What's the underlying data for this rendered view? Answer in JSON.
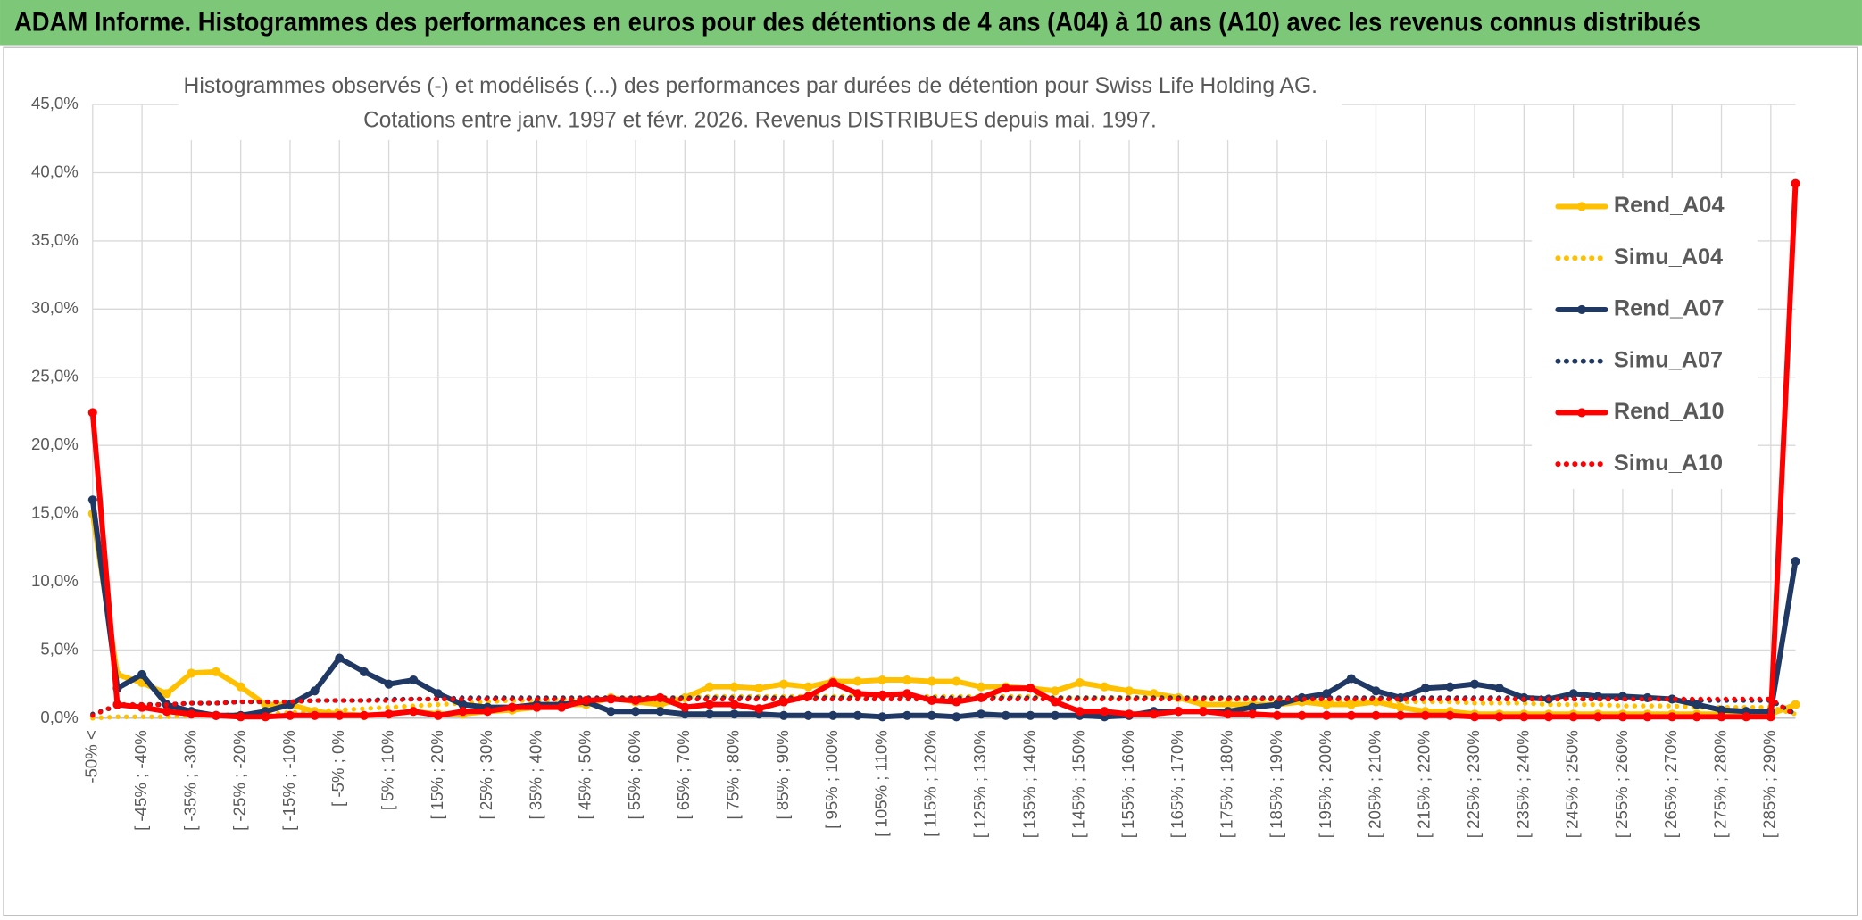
{
  "header": {
    "title": "ADAM Informe. Histogrammes des performances en euros pour des détentions de 4 ans (A04) à 10 ans (A10) avec les revenus connus distribués"
  },
  "chart_data": {
    "type": "line",
    "title": "Histogrammes observés (-) et modélisés (...) des performances par durées de détention pour Swiss Life Holding AG.",
    "subtitle": "Cotations entre janv. 1997 et févr. 2026. Revenus DISTRIBUES depuis mai. 1997.",
    "categories": [
      "-50% <",
      null,
      "[ -45% ; -40%",
      null,
      "[ -35% ; -30%",
      null,
      "[ -25% ; -20%",
      null,
      "[ -15% ; -10%",
      null,
      "[ -5% ; 0%",
      null,
      "[ 5% ; 10%",
      null,
      "[ 15% ; 20%",
      null,
      "[ 25% ; 30%",
      null,
      "[ 35% ; 40%",
      null,
      "[ 45% ; 50%",
      null,
      "[ 55% ; 60%",
      null,
      "[ 65% ; 70%",
      null,
      "[ 75% ; 80%",
      null,
      "[ 85% ; 90%",
      null,
      "[ 95% ; 100%",
      null,
      "[ 105% ; 110%",
      null,
      "[ 115% ; 120%",
      null,
      "[ 125% ; 130%",
      null,
      "[ 135% ; 140%",
      null,
      "[ 145% ; 150%",
      null,
      "[ 155% ; 160%",
      null,
      "[ 165% ; 170%",
      null,
      "[ 175% ; 180%",
      null,
      "[ 185% ; 190%",
      null,
      "[ 195% ; 200%",
      null,
      "[ 205% ; 210%",
      null,
      "[ 215% ; 220%",
      null,
      "[ 225% ; 230%",
      null,
      "[ 235% ; 240%",
      null,
      "[ 245% ; 250%",
      null,
      "[ 255% ; 260%",
      null,
      "[ 265% ; 270%",
      null,
      "[ 275% ; 280%",
      null,
      "[ 285% ; 290%",
      null
    ],
    "series": [
      {
        "name": "Rend_A04",
        "color": "#ffc000",
        "line_style": "solid",
        "marker": "circle",
        "values": [
          15.0,
          3.2,
          2.6,
          1.8,
          3.3,
          3.4,
          2.3,
          1.0,
          1.0,
          0.5,
          0.3,
          0.2,
          0.3,
          0.5,
          0.3,
          0.3,
          0.5,
          0.6,
          0.8,
          1.0,
          1.0,
          1.5,
          1.2,
          1.0,
          1.5,
          2.3,
          2.3,
          2.2,
          2.5,
          2.3,
          2.7,
          2.7,
          2.8,
          2.8,
          2.7,
          2.7,
          2.3,
          2.3,
          2.2,
          2.0,
          2.6,
          2.3,
          2.0,
          1.8,
          1.5,
          1.0,
          1.0,
          1.0,
          1.0,
          1.2,
          1.0,
          1.0,
          1.2,
          0.8,
          0.5,
          0.5,
          0.3,
          0.3,
          0.3,
          0.3,
          0.3,
          0.3,
          0.3,
          0.3,
          0.3,
          0.3,
          0.3,
          0.3,
          0.3,
          1.0
        ]
      },
      {
        "name": "Simu_A04",
        "color": "#ffc000",
        "line_style": "dotted",
        "values": [
          0,
          0.1,
          0.1,
          0.1,
          0.2,
          0.2,
          0.3,
          0.3,
          0.4,
          0.5,
          0.6,
          0.7,
          0.8,
          0.9,
          1.0,
          1.1,
          1.2,
          1.3,
          1.3,
          1.4,
          1.4,
          1.5,
          1.5,
          1.5,
          1.5,
          1.6,
          1.6,
          1.6,
          1.6,
          1.6,
          1.6,
          1.6,
          1.6,
          1.6,
          1.6,
          1.6,
          1.6,
          1.6,
          1.6,
          1.5,
          1.5,
          1.5,
          1.5,
          1.5,
          1.5,
          1.5,
          1.4,
          1.4,
          1.4,
          1.4,
          1.3,
          1.3,
          1.3,
          1.2,
          1.2,
          1.2,
          1.1,
          1.1,
          1.1,
          1.0,
          1.0,
          1.0,
          0.9,
          0.9,
          0.9,
          0.8,
          0.8,
          0.8,
          0.8,
          0.3
        ]
      },
      {
        "name": "Rend_A07",
        "color": "#1f3864",
        "line_style": "solid",
        "marker": "circle",
        "values": [
          16.0,
          2.2,
          3.2,
          1.0,
          0.5,
          0.2,
          0.2,
          0.5,
          1.0,
          2.0,
          4.4,
          3.4,
          2.5,
          2.8,
          1.8,
          1.0,
          0.8,
          0.8,
          1.0,
          1.0,
          1.2,
          0.5,
          0.5,
          0.5,
          0.3,
          0.3,
          0.3,
          0.3,
          0.2,
          0.2,
          0.2,
          0.2,
          0.1,
          0.2,
          0.2,
          0.1,
          0.3,
          0.2,
          0.2,
          0.2,
          0.2,
          0.1,
          0.2,
          0.5,
          0.5,
          0.5,
          0.5,
          0.8,
          1.0,
          1.5,
          1.8,
          2.9,
          2.0,
          1.5,
          2.2,
          2.3,
          2.5,
          2.2,
          1.5,
          1.4,
          1.8,
          1.6,
          1.6,
          1.5,
          1.4,
          1.0,
          0.6,
          0.5,
          0.5,
          11.5
        ]
      },
      {
        "name": "Simu_A07",
        "color": "#1f3864",
        "line_style": "dotted",
        "values": [
          0.3,
          0.9,
          1.0,
          1.0,
          1.1,
          1.1,
          1.2,
          1.2,
          1.2,
          1.3,
          1.3,
          1.3,
          1.4,
          1.4,
          1.4,
          1.5,
          1.5,
          1.5,
          1.5,
          1.5,
          1.5,
          1.5,
          1.5,
          1.5,
          1.5,
          1.5,
          1.5,
          1.5,
          1.5,
          1.5,
          1.5,
          1.5,
          1.5,
          1.5,
          1.5,
          1.5,
          1.5,
          1.5,
          1.5,
          1.5,
          1.5,
          1.5,
          1.5,
          1.5,
          1.5,
          1.5,
          1.5,
          1.5,
          1.5,
          1.5,
          1.5,
          1.5,
          1.5,
          1.5,
          1.5,
          1.5,
          1.5,
          1.5,
          1.5,
          1.5,
          1.4,
          1.4,
          1.4,
          1.4,
          1.4,
          1.3,
          1.3,
          1.3,
          1.3,
          0.3
        ]
      },
      {
        "name": "Rend_A10",
        "color": "#ff0000",
        "line_style": "solid",
        "marker": "circle",
        "values": [
          22.4,
          1.0,
          0.8,
          0.5,
          0.3,
          0.2,
          0.1,
          0.1,
          0.2,
          0.2,
          0.2,
          0.2,
          0.3,
          0.5,
          0.2,
          0.5,
          0.5,
          0.8,
          0.8,
          0.8,
          1.3,
          1.4,
          1.3,
          1.5,
          0.8,
          1.0,
          1.0,
          0.7,
          1.2,
          1.6,
          2.6,
          1.8,
          1.7,
          1.8,
          1.3,
          1.2,
          1.5,
          2.2,
          2.2,
          1.2,
          0.5,
          0.5,
          0.3,
          0.3,
          0.5,
          0.5,
          0.3,
          0.3,
          0.2,
          0.2,
          0.2,
          0.2,
          0.2,
          0.2,
          0.2,
          0.2,
          0.1,
          0.1,
          0.1,
          0.1,
          0.1,
          0.1,
          0.1,
          0.1,
          0.1,
          0.1,
          0.1,
          0.1,
          0.1,
          39.2
        ]
      },
      {
        "name": "Simu_A10",
        "color": "#ff0000",
        "line_style": "dotted",
        "values": [
          0.2,
          1.0,
          1.0,
          1.0,
          1.1,
          1.1,
          1.2,
          1.2,
          1.2,
          1.3,
          1.3,
          1.3,
          1.3,
          1.4,
          1.4,
          1.4,
          1.4,
          1.4,
          1.4,
          1.4,
          1.4,
          1.4,
          1.4,
          1.4,
          1.4,
          1.4,
          1.4,
          1.4,
          1.4,
          1.4,
          1.4,
          1.4,
          1.4,
          1.4,
          1.4,
          1.4,
          1.4,
          1.4,
          1.4,
          1.4,
          1.4,
          1.4,
          1.4,
          1.4,
          1.4,
          1.4,
          1.4,
          1.4,
          1.4,
          1.4,
          1.4,
          1.4,
          1.4,
          1.4,
          1.4,
          1.4,
          1.4,
          1.4,
          1.4,
          1.4,
          1.4,
          1.4,
          1.4,
          1.4,
          1.4,
          1.4,
          1.4,
          1.4,
          1.4,
          0.2
        ]
      }
    ],
    "ylim": [
      0,
      45
    ],
    "yticks": [
      {
        "value": 0,
        "label": "0,0%"
      },
      {
        "value": 5,
        "label": "5,0%"
      },
      {
        "value": 10,
        "label": "10,0%"
      },
      {
        "value": 15,
        "label": "15,0%"
      },
      {
        "value": 20,
        "label": "20,0%"
      },
      {
        "value": 25,
        "label": "25,0%"
      },
      {
        "value": 30,
        "label": "30,0%"
      },
      {
        "value": 35,
        "label": "35,0%"
      },
      {
        "value": 40,
        "label": "40,0%"
      },
      {
        "value": 45,
        "label": "45,0%"
      }
    ],
    "grid": true,
    "legend": "right"
  }
}
